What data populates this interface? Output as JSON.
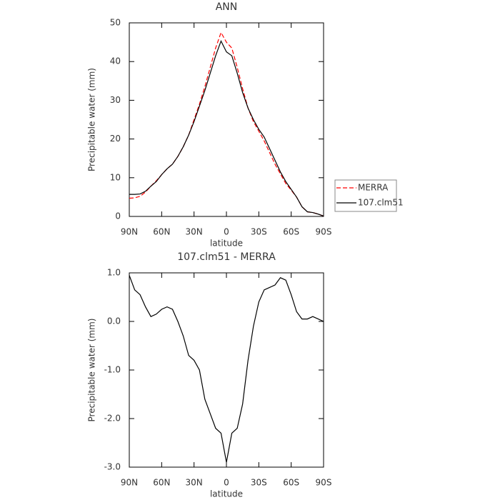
{
  "chart_data": [
    {
      "type": "line",
      "title": "ANN",
      "xlabel": "latitude",
      "ylabel": "Precipitable water (mm)",
      "x": [
        90,
        85,
        80,
        75,
        70,
        65,
        60,
        55,
        50,
        45,
        40,
        35,
        30,
        25,
        20,
        15,
        10,
        5,
        0,
        -5,
        -10,
        -15,
        -20,
        -25,
        -30,
        -35,
        -40,
        -45,
        -50,
        -55,
        -60,
        -65,
        -70,
        -75,
        -80,
        -85,
        -90
      ],
      "series": [
        {
          "name": "MERRA",
          "color": "#ff0000",
          "dashed": true,
          "values": [
            4.7,
            4.8,
            5.2,
            6.3,
            7.8,
            9.2,
            10.8,
            12.3,
            13.5,
            15.5,
            18,
            21,
            25,
            29,
            33.5,
            38.5,
            43.5,
            47.5,
            45,
            43.5,
            38.5,
            33,
            28,
            24.5,
            22,
            19.5,
            16.5,
            13.5,
            11,
            8.5,
            6.8,
            5,
            2.5,
            1.2,
            1.0,
            0.6,
            0.1
          ]
        },
        {
          "name": "107.clm51",
          "color": "#000000",
          "dashed": false,
          "values": [
            5.7,
            5.7,
            5.8,
            6.5,
            7.8,
            9.0,
            10.8,
            12.3,
            13.5,
            15.5,
            18,
            21,
            24.5,
            28.5,
            32.5,
            37,
            41.5,
            45.3,
            42.5,
            41.5,
            37,
            32,
            28,
            25,
            22.5,
            20.5,
            17.5,
            14.5,
            11.5,
            9,
            7,
            5,
            2.5,
            1.2,
            1.0,
            0.6,
            0.1
          ]
        }
      ],
      "xlim": [
        90,
        -90
      ],
      "xticks": [
        {
          "value": 90,
          "label": "90N"
        },
        {
          "value": 60,
          "label": "60N"
        },
        {
          "value": 30,
          "label": "30N"
        },
        0,
        {
          "value": -30,
          "label": "30S"
        },
        {
          "value": -60,
          "label": "60S"
        },
        {
          "value": -90,
          "label": "90S"
        }
      ],
      "ylim": [
        0,
        50
      ],
      "yticks": [
        0,
        10,
        20,
        30,
        40,
        50
      ],
      "legend": "outside-right"
    },
    {
      "type": "line",
      "title": "107.clm51 - MERRA",
      "xlabel": "latitude",
      "ylabel": "Precipitable water (mm)",
      "x": [
        90,
        85,
        80,
        75,
        70,
        65,
        60,
        55,
        50,
        45,
        40,
        35,
        30,
        25,
        20,
        15,
        10,
        5,
        0,
        -5,
        -10,
        -15,
        -20,
        -25,
        -30,
        -35,
        -40,
        -45,
        -50,
        -55,
        -60,
        -65,
        -70,
        -75,
        -80,
        -85,
        -90
      ],
      "color": "#000000",
      "values": [
        0.95,
        0.65,
        0.55,
        0.3,
        0.1,
        0.15,
        0.25,
        0.3,
        0.25,
        0.0,
        -0.3,
        -0.7,
        -0.8,
        -1.0,
        -1.6,
        -1.9,
        -2.2,
        -2.3,
        -2.9,
        -2.3,
        -2.2,
        -1.7,
        -0.8,
        -0.1,
        0.4,
        0.65,
        0.7,
        0.75,
        0.9,
        0.85,
        0.55,
        0.2,
        0.05,
        0.05,
        0.1,
        0.05,
        0.0
      ],
      "xlim": [
        90,
        -90
      ],
      "xticks": [
        {
          "value": 90,
          "label": "90N"
        },
        {
          "value": 60,
          "label": "60N"
        },
        {
          "value": 30,
          "label": "30N"
        },
        0,
        {
          "value": -30,
          "label": "30S"
        },
        {
          "value": -60,
          "label": "60S"
        },
        {
          "value": -90,
          "label": "90S"
        }
      ],
      "ylim": [
        -3,
        1
      ],
      "yticks": [
        {
          "value": -3,
          "label": "-3.0"
        },
        {
          "value": -2,
          "label": "-2.0"
        },
        {
          "value": -1,
          "label": "-1.0"
        },
        {
          "value": 0,
          "label": "0.0"
        },
        {
          "value": 1,
          "label": "1.0"
        }
      ]
    }
  ]
}
